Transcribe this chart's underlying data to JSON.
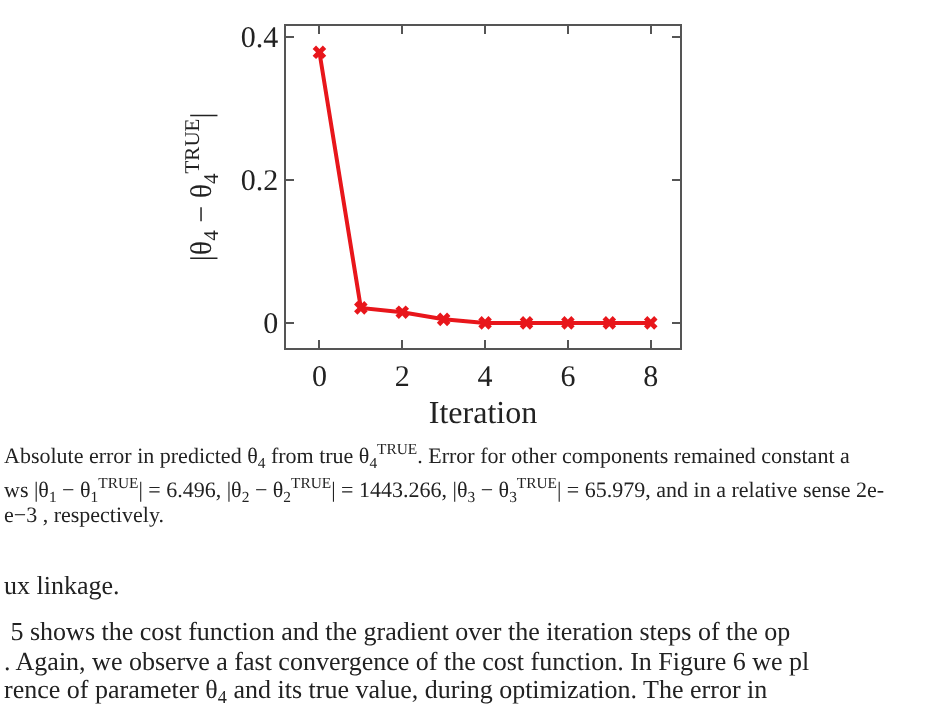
{
  "chart_data": {
    "type": "line",
    "xlabel": "Iteration",
    "ylabel": "|θ$_{4}$ − θ$_{4}$$^{TRUE}$|",
    "x": [
      0,
      1,
      2,
      3,
      4,
      5,
      6,
      7,
      8
    ],
    "series": [
      {
        "color": "#e8161b",
        "values": [
          0.378,
          0.021,
          0.015,
          0.005,
          0.0,
          0.0,
          0.0,
          0.0,
          0.0
        ]
      }
    ],
    "xlim": [
      -0.8,
      8.7
    ],
    "ylim": [
      -0.035,
      0.415
    ],
    "xticks": [
      0,
      2,
      4,
      6,
      8
    ],
    "yticks": [
      0,
      0.2,
      0.4
    ],
    "marker": "cross",
    "line_style": "solid",
    "grid": false,
    "annotations": [
      "Absolute error in predicted θ$_{4}$ from true θ$_{4}$$^{TRUE}$. Error for other components remained constant a",
      "ws |θ$_{1}$ − θ$_{1}$$^{TRUE}$| = 6.496, |θ$_{2}$ − θ$_{2}$$^{TRUE}$| = 1443.266, |θ$_{3}$ − θ$_{3}$$^{TRUE}$| = 65.979, and in a relative sense 2e-",
      "e−3 , respectively.",
      "ux linkage.",
      " 5 shows the cost function and the gradient over the iteration steps of the op",
      ". Again, we observe a fast convergence of the cost function. In Figure 6 we pl",
      "rence of parameter θ$_{4}$ and its true value, during optimization. The error in"
    ]
  }
}
